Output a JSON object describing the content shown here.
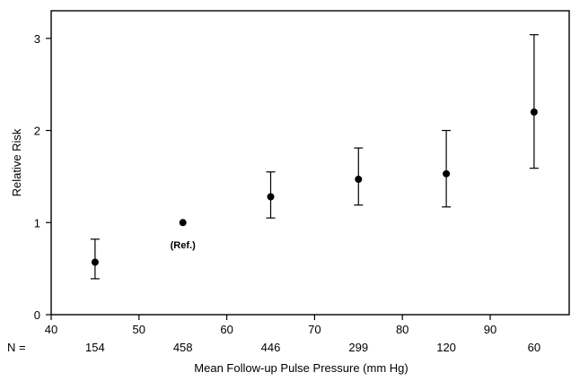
{
  "chart_data": {
    "type": "scatter",
    "title": "",
    "xlabel": "Mean Follow-up Pulse Pressure (mm Hg)",
    "ylabel": "Relative Risk",
    "xlim": [
      40,
      99
    ],
    "ylim": [
      0,
      3.3
    ],
    "xticks": [
      40,
      50,
      60,
      70,
      80,
      90
    ],
    "yticks": [
      0,
      1,
      2,
      3
    ],
    "grid": false,
    "legend": "none",
    "series": [
      {
        "x": [
          45,
          55,
          65,
          75,
          85,
          95
        ],
        "y": [
          0.57,
          1.0,
          1.28,
          1.47,
          1.53,
          2.2
        ],
        "lower": [
          0.39,
          1.0,
          1.05,
          1.19,
          1.17,
          1.59
        ],
        "upper": [
          0.82,
          1.0,
          1.55,
          1.81,
          2.0,
          3.04
        ]
      }
    ],
    "n_prefix": "N =",
    "n_values": [
      "154",
      "458",
      "446",
      "299",
      "120",
      "60"
    ],
    "annotations": [
      {
        "text": "(Ref.)",
        "x": 55,
        "y": 0.72
      }
    ]
  },
  "colors": {
    "axis": "#000000",
    "marker": "#000000",
    "background": "#ffffff"
  }
}
